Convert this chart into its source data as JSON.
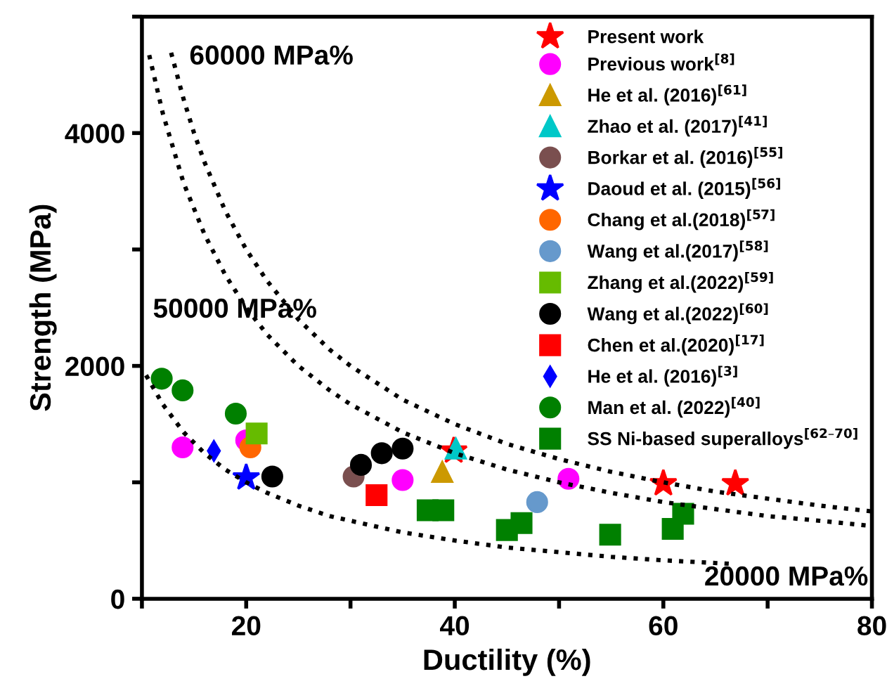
{
  "chart_data": {
    "type": "scatter",
    "xlabel": "Ductility (%)",
    "ylabel": "Strength (MPa)",
    "xlim": [
      10,
      80
    ],
    "ylim": [
      0,
      5000
    ],
    "xticks": [
      {
        "value": 10,
        "label": null
      },
      20,
      {
        "value": 30,
        "label": null
      },
      40,
      {
        "value": 50,
        "label": null
      },
      60,
      {
        "value": 70,
        "label": null
      },
      80
    ],
    "yticks": [
      0,
      {
        "value": 1000,
        "label": null
      },
      2000,
      {
        "value": 3000,
        "label": null
      },
      4000,
      {
        "value": 5000,
        "label": null
      }
    ],
    "grid": false,
    "legend": "top right",
    "annotations": [
      "60000 MPa%",
      "50000 MPa%",
      "20000 MPa%"
    ],
    "series": [
      {
        "name": "Present work",
        "color": "#ff0000",
        "marker": "star",
        "x": [
          39.9,
          60.0,
          66.9
        ],
        "values": [
          1270,
          990,
          990
        ]
      },
      {
        "name": "Previous work$^{[8]}$",
        "color": "#ff00ff",
        "marker": "circle",
        "x": [
          13.9,
          20.0,
          35.0,
          50.9
        ],
        "values": [
          1300,
          1360,
          1020,
          1030
        ]
      },
      {
        "name": "He et al. (2016)$^{[61]}$",
        "color": "#cc9900",
        "marker": "triangle",
        "x": [
          38.8
        ],
        "values": [
          1090
        ]
      },
      {
        "name": "Zhao et al. (2017)$^{[41]}$",
        "color": "#00c8c8",
        "marker": "triangle",
        "x": [
          40.1
        ],
        "values": [
          1290
        ]
      },
      {
        "name": "Borkar et al. (2016)$^{[55]}$",
        "color": "#7a4f4f",
        "x": [
          30.3
        ],
        "values": [
          1050
        ]
      },
      {
        "name": "Daoud et al. (2015)$^{[56]}$",
        "color": "#0000ff",
        "marker": "star",
        "x": [
          20.0
        ],
        "values": [
          1040
        ]
      },
      {
        "name": "Chang et al.(2018)$^{[57]}$",
        "color": "#ff6600",
        "x": [
          20.4
        ],
        "values": [
          1300
        ]
      },
      {
        "name": "Wang et al.(2017)$^{[58]}$",
        "color": "#6699cc",
        "marker": "circle",
        "x": [
          47.9
        ],
        "values": [
          830
        ]
      },
      {
        "name": "Zhang et al.(2022)$^{[59]}$",
        "color": "#66bb00",
        "marker": "square",
        "x": [
          21.0
        ],
        "values": [
          1420
        ]
      },
      {
        "name": "Wang et al.(2022)$^{[60]}$",
        "color": "#000000",
        "x": [
          22.5,
          31.0,
          33.0,
          35.0
        ],
        "values": [
          1050,
          1150,
          1250,
          1290
        ]
      },
      {
        "name": "Chen et al.(2020)$^{[17]}$",
        "color": "#ff0000",
        "marker": "square",
        "x": [
          32.5
        ],
        "values": [
          890
        ]
      },
      {
        "name": "He et al. (2016)$^{[3]}$",
        "color": "#0000ff",
        "marker": "diamond",
        "x": [
          16.9
        ],
        "values": [
          1270
        ]
      },
      {
        "name": "Man et al. (2022)$^{[40]}$",
        "color": "#008000",
        "x": [
          11.9,
          13.9,
          19.0
        ],
        "values": [
          1890,
          1790,
          1590
        ]
      },
      {
        "name": "SS Ni-based superalloys$^{[62–70]}$",
        "color": "#008000",
        "marker": "square",
        "x": [
          37.4,
          38.9,
          45.0,
          46.4,
          54.9,
          60.9,
          61.9
        ],
        "values": [
          760,
          760,
          590,
          650,
          550,
          600,
          730
        ]
      },
      {
        "type": "line",
        "color": "#000000",
        "line_style": "dotted",
        "x": [
          12.8,
          14,
          15,
          16,
          18,
          20,
          22,
          25,
          28,
          30,
          35,
          40,
          45,
          50,
          55,
          60,
          65,
          70,
          75,
          80
        ],
        "values": [
          4690,
          4290,
          4000,
          3750,
          3330,
          3000,
          2730,
          2400,
          2140,
          2000,
          1710,
          1500,
          1330,
          1200,
          1090,
          1000,
          920,
          860,
          800,
          750
        ]
      },
      {
        "type": "line",
        "color": "#000000",
        "line_style": "dotted",
        "x": [
          10.7,
          12,
          14,
          16,
          18,
          20,
          22,
          25,
          28,
          30,
          35,
          40,
          45,
          50,
          55,
          60,
          65,
          70,
          75,
          80
        ],
        "values": [
          4670,
          4170,
          3570,
          3130,
          2780,
          2500,
          2270,
          2000,
          1790,
          1670,
          1430,
          1250,
          1110,
          1000,
          910,
          830,
          770,
          710,
          670,
          625
        ]
      },
      {
        "type": "line",
        "color": "#000000",
        "line_style": "dotted",
        "x": [
          10.4,
          12,
          14,
          16,
          18,
          20,
          22,
          25,
          28,
          30,
          35,
          40,
          45,
          50,
          55,
          60,
          66.5
        ],
        "values": [
          1920,
          1670,
          1430,
          1250,
          1110,
          1000,
          910,
          800,
          710,
          670,
          570,
          500,
          440,
          400,
          360,
          330,
          300
        ]
      }
    ]
  }
}
